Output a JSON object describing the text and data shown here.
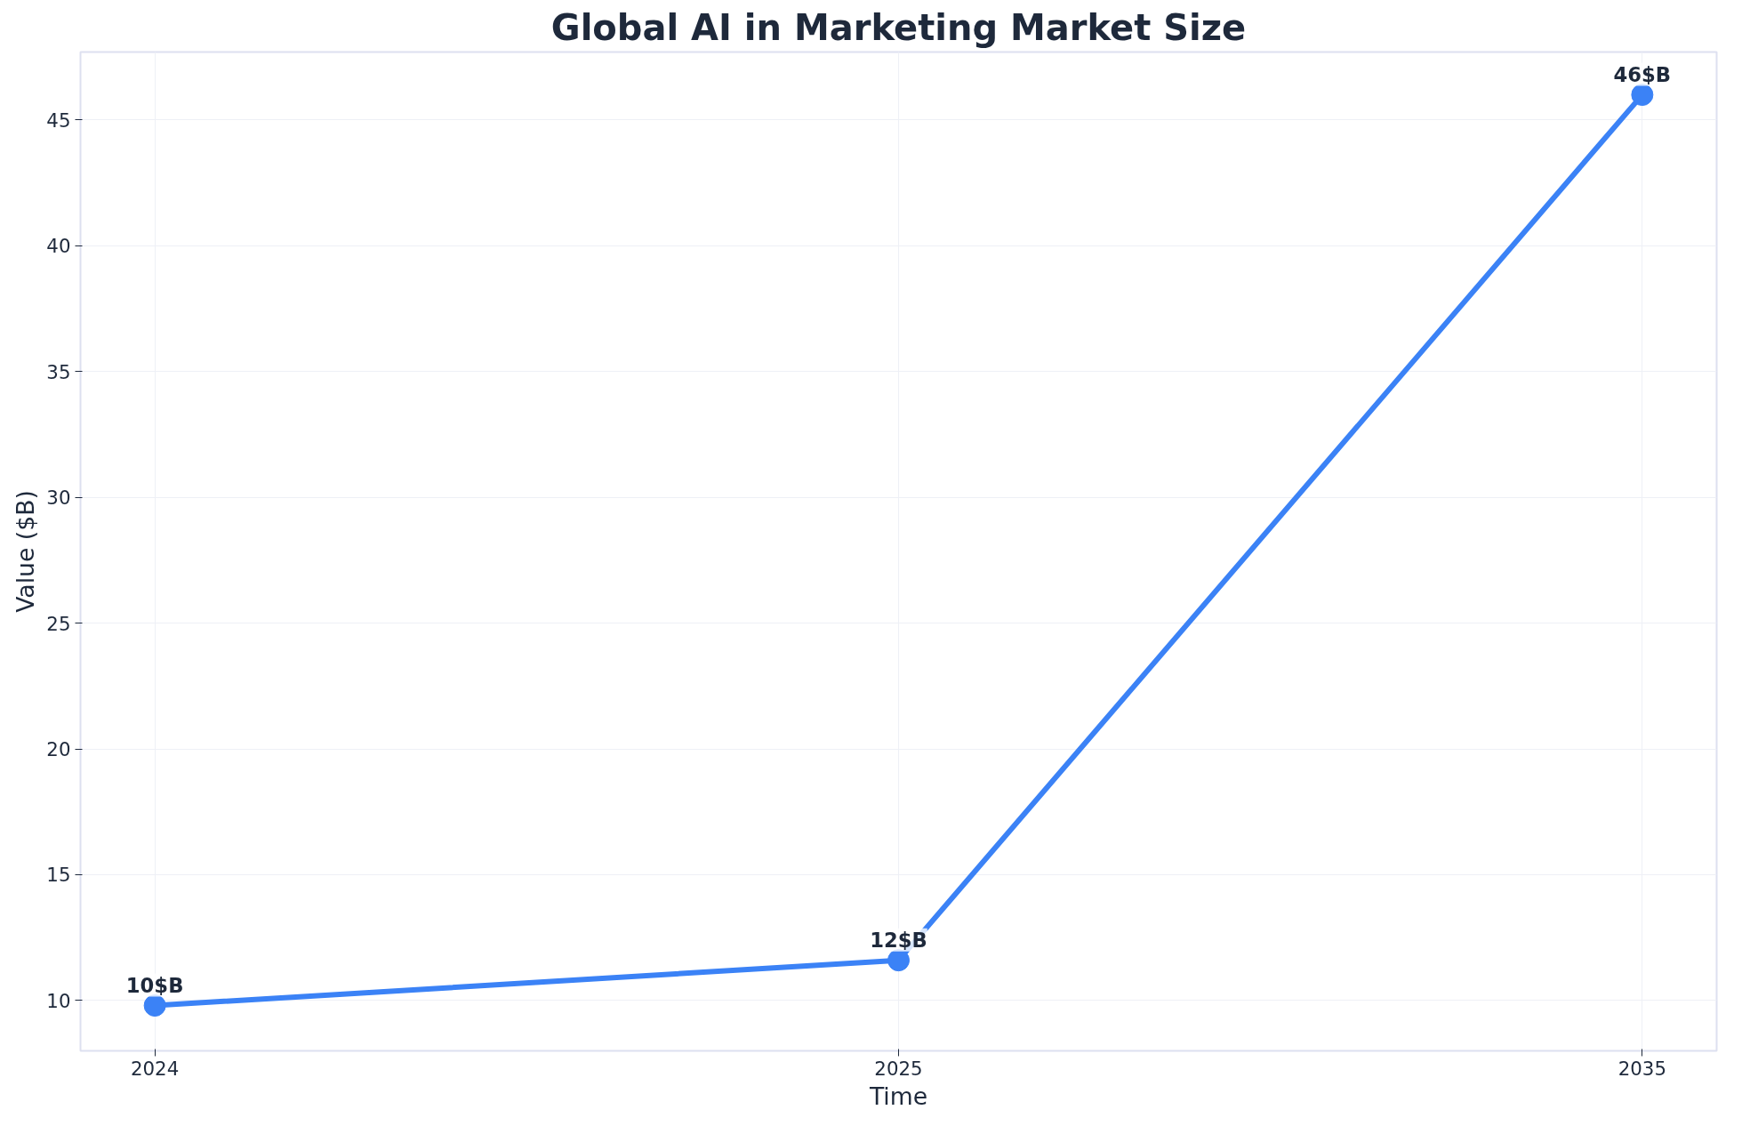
{
  "chart_data": {
    "type": "line",
    "title": "Global AI in Marketing Market Size",
    "xlabel": "Time",
    "ylabel": "Value ($B)",
    "categories": [
      "2024",
      "2025",
      "2035"
    ],
    "series": [
      {
        "color": "#3b82f6",
        "values": [
          9.8,
          11.6,
          46
        ],
        "value_labels": [
          "10$B",
          "12$B",
          "46$B"
        ]
      }
    ],
    "ylim": [
      8,
      47.7
    ],
    "yticks": [
      10,
      15,
      20,
      25,
      30,
      35,
      40,
      45
    ],
    "grid": true,
    "marker": "circle",
    "line_style": "solid"
  }
}
